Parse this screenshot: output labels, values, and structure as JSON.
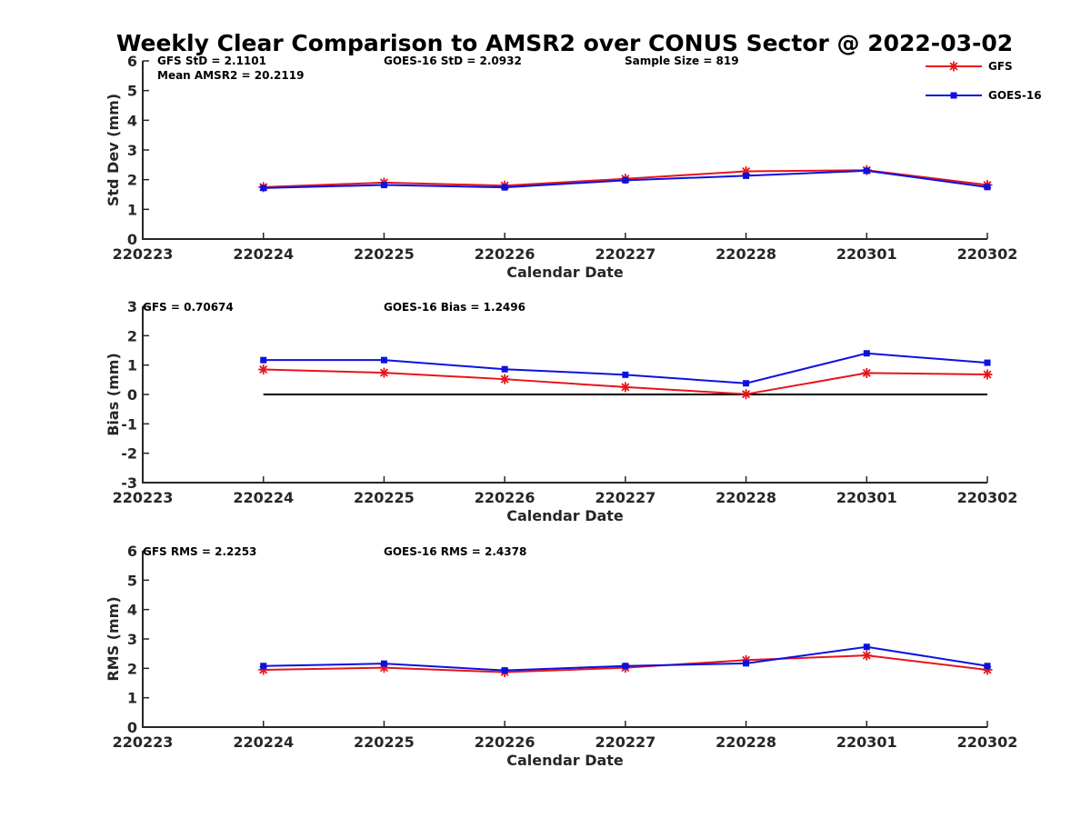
{
  "figure": {
    "title": "Weekly Clear Comparison to AMSR2 over CONUS Sector @ 2022-03-02"
  },
  "colors": {
    "gfs": "#e8141b",
    "goes16": "#0a12e0",
    "zero_line": "#000000"
  },
  "legend": {
    "placement": "top-right",
    "entries": [
      {
        "name": "GFS",
        "marker": "asterisk",
        "color": "#e8141b"
      },
      {
        "name": "GOES-16",
        "marker": "square",
        "color": "#0a12e0"
      }
    ]
  },
  "chart_data": [
    {
      "type": "line",
      "id": "std",
      "title": "",
      "xlabel": "Calendar Date",
      "ylabel": "Std Dev (mm)",
      "ylim": [
        0,
        6
      ],
      "yticks": [
        "0",
        "1",
        "2",
        "3",
        "4",
        "5",
        "6"
      ],
      "x_ticks": [
        "220223",
        "220224",
        "220225",
        "220226",
        "220227",
        "220228",
        "220301",
        "220302"
      ],
      "x": [
        "220224",
        "220225",
        "220226",
        "220227",
        "220228",
        "220301",
        "220302"
      ],
      "grid": false,
      "annotations": [
        "GFS StD = 2.1101",
        "GOES-16 StD = 2.0932",
        "Sample Size = 819",
        "Mean AMSR2 = 20.2119"
      ],
      "zero_line": false,
      "series": [
        {
          "name": "GFS",
          "values": [
            1.75,
            1.9,
            1.8,
            2.03,
            2.28,
            2.32,
            1.82
          ]
        },
        {
          "name": "GOES-16",
          "values": [
            1.72,
            1.82,
            1.74,
            1.98,
            2.13,
            2.3,
            1.75
          ]
        }
      ]
    },
    {
      "type": "line",
      "id": "bias",
      "title": "",
      "xlabel": "Calendar Date",
      "ylabel": "Bias (mm)",
      "ylim": [
        -3,
        3
      ],
      "yticks": [
        "-3",
        "-2",
        "-1",
        "0",
        "1",
        "2",
        "3"
      ],
      "x_ticks": [
        "220223",
        "220224",
        "220225",
        "220226",
        "220227",
        "220228",
        "220301",
        "220302"
      ],
      "x": [
        "220224",
        "220225",
        "220226",
        "220227",
        "220228",
        "220301",
        "220302"
      ],
      "grid": false,
      "annotations": [
        "GFS = 0.70674",
        "GOES-16 Bias  = 1.2496"
      ],
      "zero_line": true,
      "series": [
        {
          "name": "GFS",
          "values": [
            0.85,
            0.74,
            0.52,
            0.25,
            0.01,
            0.73,
            0.68
          ]
        },
        {
          "name": "GOES-16",
          "values": [
            1.17,
            1.17,
            0.86,
            0.67,
            0.38,
            1.4,
            1.08
          ]
        }
      ]
    },
    {
      "type": "line",
      "id": "rms",
      "title": "",
      "xlabel": "Calendar Date",
      "ylabel": "RMS (mm)",
      "ylim": [
        0,
        6
      ],
      "yticks": [
        "0",
        "1",
        "2",
        "3",
        "4",
        "5",
        "6"
      ],
      "x_ticks": [
        "220223",
        "220224",
        "220225",
        "220226",
        "220227",
        "220228",
        "220301",
        "220302"
      ],
      "x": [
        "220224",
        "220225",
        "220226",
        "220227",
        "220228",
        "220301",
        "220302"
      ],
      "grid": false,
      "annotations": [
        "GFS RMS = 2.2253",
        "GOES-16 RMS = 2.4378"
      ],
      "zero_line": false,
      "series": [
        {
          "name": "GFS",
          "values": [
            1.95,
            2.02,
            1.87,
            2.02,
            2.28,
            2.44,
            1.95
          ]
        },
        {
          "name": "GOES-16",
          "values": [
            2.08,
            2.16,
            1.93,
            2.08,
            2.17,
            2.73,
            2.08
          ]
        }
      ]
    }
  ]
}
